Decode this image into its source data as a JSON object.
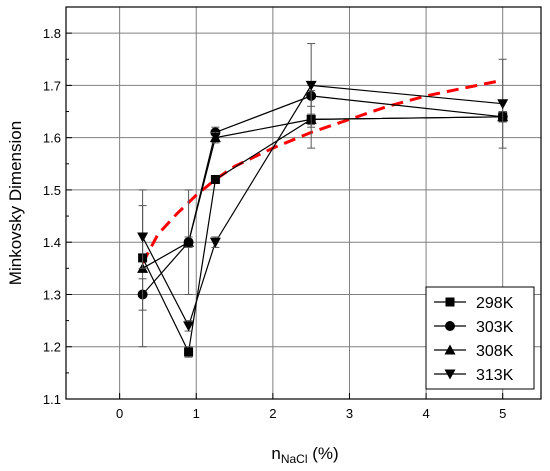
{
  "chart_data": {
    "type": "scatter",
    "title": "",
    "xlabel_main": "n",
    "xlabel_sub": "NaCl",
    "xlabel_rest": " (%)",
    "ylabel": "Minkovsky Dimension",
    "xlim": [
      -0.7,
      5.5
    ],
    "ylim": [
      1.1,
      1.85
    ],
    "xticks": [
      "0",
      "1",
      "2",
      "3",
      "4",
      "5"
    ],
    "yticks": [
      "1.1",
      "1.2",
      "1.3",
      "1.4",
      "1.5",
      "1.6",
      "1.7",
      "1.8"
    ],
    "grid": true,
    "legend_position": "bottom-right",
    "x": [
      0.3,
      0.9,
      1.25,
      2.5,
      5.0
    ],
    "series": [
      {
        "name": "298K",
        "marker": "square",
        "values": [
          1.37,
          1.19,
          1.52,
          1.635,
          1.64
        ],
        "errors": [
          0.005,
          0.01,
          0.005,
          0.01,
          0.01
        ]
      },
      {
        "name": "303K",
        "marker": "circle",
        "values": [
          1.3,
          1.4,
          1.61,
          1.68,
          1.64
        ],
        "errors": [
          0.03,
          0.1,
          0.01,
          0.02,
          0.01
        ]
      },
      {
        "name": "308K",
        "marker": "triangle-up",
        "values": [
          1.35,
          1.4,
          1.6,
          1.635,
          1.64
        ],
        "errors": [
          0.15,
          0.01,
          0.01,
          0.055,
          0.01
        ]
      },
      {
        "name": "313K",
        "marker": "triangle-down",
        "values": [
          1.41,
          1.24,
          1.4,
          1.7,
          1.665
        ],
        "errors": [
          0.06,
          0.01,
          0.01,
          0.08,
          0.085
        ]
      }
    ],
    "fit_curve": {
      "style": "dashed",
      "color": "#ff0000",
      "x": [
        0.3,
        0.5,
        0.75,
        1.0,
        1.25,
        1.5,
        2.0,
        2.5,
        3.0,
        3.5,
        4.0,
        4.5,
        5.0
      ],
      "y": [
        1.36,
        1.415,
        1.455,
        1.49,
        1.52,
        1.545,
        1.58,
        1.61,
        1.635,
        1.66,
        1.68,
        1.695,
        1.71
      ]
    },
    "colors": {
      "series": "#000000",
      "grid": "#808080",
      "fit": "#ff0000"
    }
  }
}
